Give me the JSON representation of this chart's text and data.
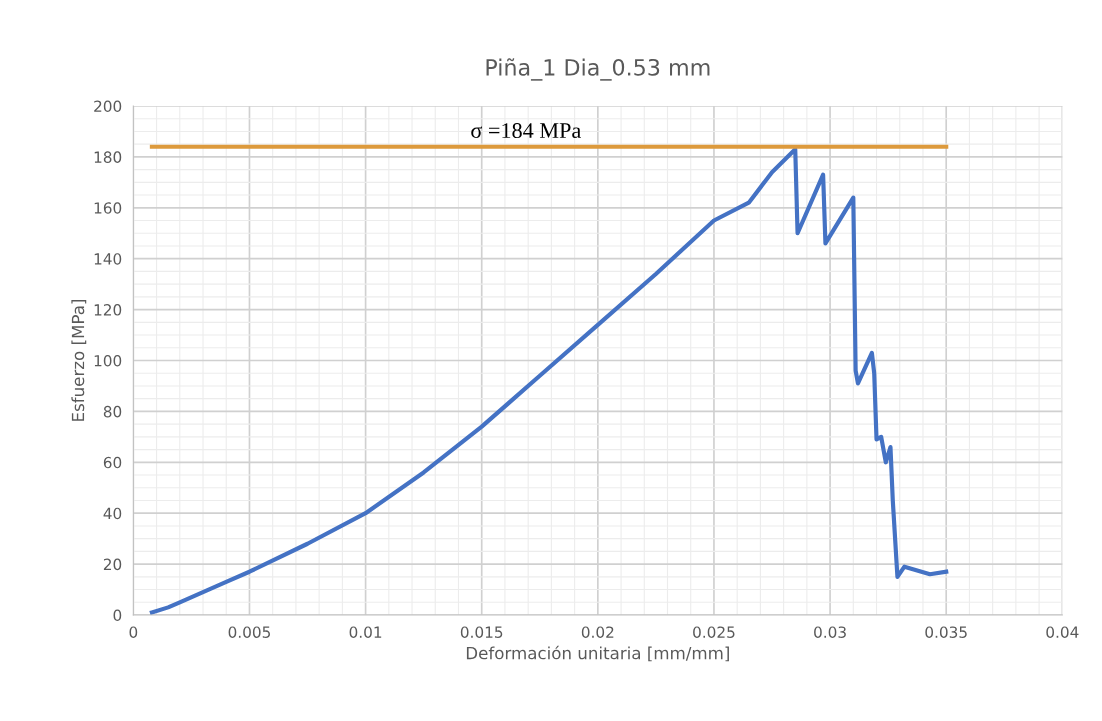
{
  "chart_data": {
    "type": "line",
    "title": "Piña_1 Dia_0.53 mm",
    "xlabel": "Deformación unitaria [mm/mm]",
    "ylabel": "Esfuerzo [MPa]",
    "series": [
      {
        "color": "#4472c4",
        "x": [
          0.0008,
          0.0015,
          0.002,
          0.003,
          0.004,
          0.005,
          0.0075,
          0.01,
          0.0125,
          0.015,
          0.0175,
          0.02,
          0.0225,
          0.025,
          0.0265,
          0.0275,
          0.0285,
          0.0286,
          0.0297,
          0.0298,
          0.031,
          0.0311,
          0.0312,
          0.0318,
          0.0319,
          0.032,
          0.0322,
          0.0324,
          0.0326,
          0.0327,
          0.0329,
          0.0332,
          0.0343,
          0.035
        ],
        "values": [
          1,
          3,
          5,
          9,
          13,
          17,
          28,
          40,
          56,
          74,
          94,
          114,
          134,
          155,
          162,
          174,
          183,
          150,
          173,
          146,
          164,
          96,
          91,
          103,
          95,
          69,
          70,
          60,
          66,
          45,
          15,
          19,
          16,
          17
        ]
      },
      {
        "color": "#dd9a3c",
        "x": [
          0.0008,
          0.035
        ],
        "values": [
          184,
          184
        ]
      }
    ],
    "annotations": [
      {
        "text": "σ =184 MPa",
        "x": 0.0169,
        "y": 184
      }
    ],
    "xlim": [
      0,
      0.04
    ],
    "xticks": [
      0,
      0.005,
      0.01,
      0.015,
      0.02,
      0.025,
      0.03,
      0.035,
      0.04
    ],
    "ylim": [
      0,
      200
    ],
    "yticks": [
      0,
      20,
      40,
      60,
      80,
      100,
      120,
      140,
      160,
      180,
      200
    ],
    "grid": true,
    "legend": false
  }
}
